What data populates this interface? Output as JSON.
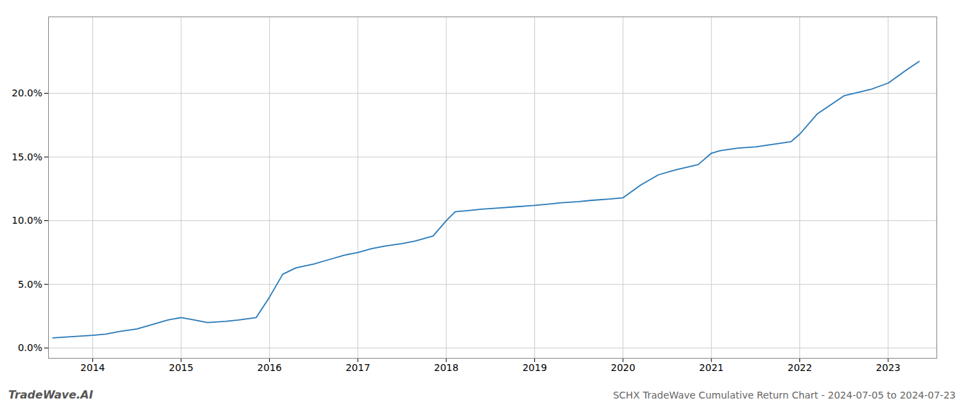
{
  "chart_data": {
    "type": "line",
    "title": "SCHX TradeWave Cumulative Return Chart - 2024-07-05 to 2024-07-23",
    "annotations": [
      {
        "text": "TradeWave.AI"
      }
    ],
    "color": "#2b7bba",
    "grid": true,
    "x": [
      2013.55,
      2014.0,
      2014.15,
      2014.3,
      2014.5,
      2014.65,
      2014.85,
      2015.0,
      2015.15,
      2015.3,
      2015.5,
      2015.65,
      2015.85,
      2016.0,
      2016.15,
      2016.3,
      2016.5,
      2016.65,
      2016.85,
      2017.0,
      2017.15,
      2017.3,
      2017.5,
      2017.65,
      2017.85,
      2018.0,
      2018.1,
      2018.25,
      2018.4,
      2018.6,
      2018.8,
      2019.0,
      2019.15,
      2019.3,
      2019.5,
      2019.65,
      2019.85,
      2020.0,
      2020.2,
      2020.4,
      2020.6,
      2020.85,
      2021.0,
      2021.1,
      2021.3,
      2021.5,
      2021.7,
      2021.9,
      2022.0,
      2022.2,
      2022.5,
      2022.8,
      2023.0,
      2023.2,
      2023.35
    ],
    "values": [
      0.008,
      0.01,
      0.011,
      0.013,
      0.015,
      0.018,
      0.022,
      0.024,
      0.022,
      0.02,
      0.021,
      0.022,
      0.024,
      0.04,
      0.058,
      0.063,
      0.066,
      0.069,
      0.073,
      0.075,
      0.078,
      0.08,
      0.082,
      0.084,
      0.088,
      0.1,
      0.107,
      0.108,
      0.109,
      0.11,
      0.111,
      0.112,
      0.113,
      0.114,
      0.115,
      0.116,
      0.117,
      0.118,
      0.128,
      0.136,
      0.14,
      0.144,
      0.153,
      0.155,
      0.157,
      0.158,
      0.16,
      0.162,
      0.168,
      0.184,
      0.198,
      0.203,
      0.208,
      0.218,
      0.225
    ],
    "xlim": [
      2013.5,
      2023.55
    ],
    "ylim": [
      -0.008,
      0.26
    ],
    "xticks": [
      2014,
      2015,
      2016,
      2017,
      2018,
      2019,
      2020,
      2021,
      2022,
      2023
    ],
    "yticks": [
      {
        "value": 0.0,
        "label": "0.0%"
      },
      {
        "value": 0.05,
        "label": "5.0%"
      },
      {
        "value": 0.1,
        "label": "10.0%"
      },
      {
        "value": 0.15,
        "label": "15.0%"
      },
      {
        "value": 0.2,
        "label": "20.0%"
      }
    ]
  }
}
